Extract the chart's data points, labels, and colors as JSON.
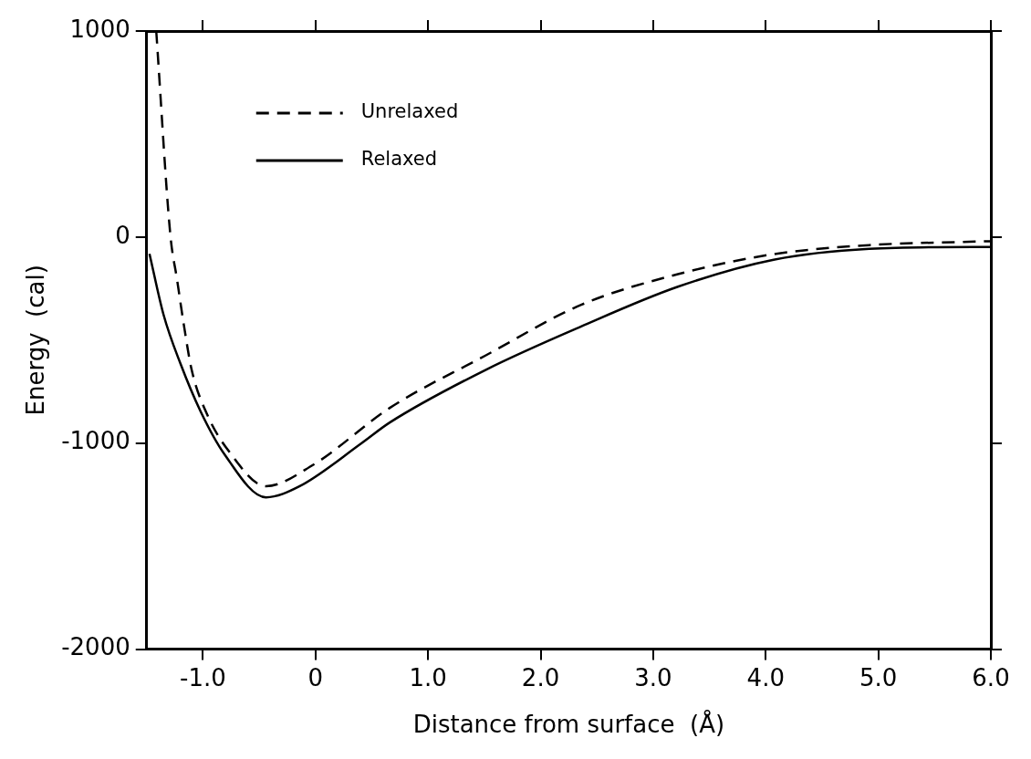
{
  "chart_data": {
    "type": "line",
    "xlabel": "Distance from surface  (Å)",
    "ylabel": "Energy  (cal)",
    "xlim": [
      -1.5,
      6.0
    ],
    "ylim": [
      -2000,
      1000
    ],
    "xticks": [
      {
        "value": -1,
        "label": "-1.0"
      },
      0,
      {
        "value": 1,
        "label": "1.0"
      },
      {
        "value": 2,
        "label": "2.0"
      },
      {
        "value": 3,
        "label": "3.0"
      },
      {
        "value": 4,
        "label": "4.0"
      },
      {
        "value": 5,
        "label": "5.0"
      },
      {
        "value": 6,
        "label": "6.0"
      }
    ],
    "yticks": [
      -2000,
      -1000,
      0,
      1000
    ],
    "grid": false,
    "legend": "top left",
    "marker": "none",
    "series": [
      {
        "name": "Unrelaxed",
        "color": "#000000",
        "line_style": "dashed",
        "x": [
          -1.415,
          -1.29,
          -1.23,
          -1.17,
          -1.1,
          -0.96,
          -0.77,
          -0.44,
          -0.02,
          0.66,
          1.51,
          2.36,
          3.22,
          4.07,
          4.92,
          5.86,
          6.0
        ],
        "values": [
          1000,
          13,
          -206,
          -425,
          -645,
          -864,
          -1039,
          -1209,
          -1105,
          -829,
          -575,
          -329,
          -180,
          -83,
          -39,
          -22,
          -20
        ]
      },
      {
        "name": "Relaxed",
        "color": "#000000",
        "line_style": "solid",
        "x": [
          -1.475,
          -1.35,
          -1.2,
          -1.02,
          -0.81,
          -0.44,
          -0.14,
          0.41,
          0.66,
          1.51,
          2.36,
          3.22,
          4.07,
          4.92,
          5.84,
          6.0
        ],
        "values": [
          -81,
          -377,
          -614,
          -847,
          -1053,
          -1263,
          -1209,
          -1000,
          -900,
          -645,
          -434,
          -241,
          -110,
          -57,
          -48,
          -48
        ]
      }
    ]
  }
}
